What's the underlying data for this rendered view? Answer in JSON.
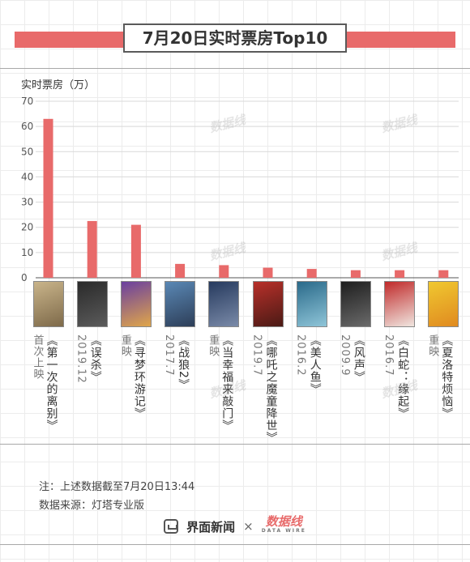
{
  "header": {
    "title": "7月20日实时票房Top10"
  },
  "watermark": "数据线",
  "chart_data": {
    "type": "bar",
    "title": "7月20日实时票房Top10",
    "ylabel": "实时票房（万）",
    "ylim": [
      0,
      70
    ],
    "yticks": [
      0,
      10,
      20,
      30,
      40,
      50,
      60,
      70
    ],
    "grid": true,
    "bar_color": "#e86a6a",
    "categories": [
      "《第一次的离别》",
      "《误杀》",
      "《寻梦环游记》",
      "《战狼2》",
      "《当幸福来敲门》",
      "《哪吒之魔童降世》",
      "《美人鱼》",
      "《风声》",
      "《白蛇：缘起》",
      "《夏洛特烦恼》"
    ],
    "values": [
      63,
      22.5,
      21,
      5.5,
      5,
      4,
      3.5,
      3,
      3,
      3
    ],
    "release_notes": [
      "首次上映",
      "2019.12",
      "重映",
      "2017.7",
      "重映",
      "2019.7",
      "2016.2",
      "2009.9",
      "2016.7",
      "重映"
    ]
  },
  "posters": [
    {
      "colors": [
        "#c9b48a",
        "#7e6a4a"
      ]
    },
    {
      "colors": [
        "#2a2a2a",
        "#5b5b5b"
      ]
    },
    {
      "colors": [
        "#6a3fa0",
        "#e0a64a"
      ]
    },
    {
      "colors": [
        "#5a88b5",
        "#2d3e58"
      ]
    },
    {
      "colors": [
        "#263a5e",
        "#7a8aa8"
      ]
    },
    {
      "colors": [
        "#b8302a",
        "#4a1a15"
      ]
    },
    {
      "colors": [
        "#2a6a8a",
        "#8fc5d8"
      ]
    },
    {
      "colors": [
        "#1e1e1e",
        "#6a6a6a"
      ]
    },
    {
      "colors": [
        "#c02a2a",
        "#f0e6e0"
      ]
    },
    {
      "colors": [
        "#f0c830",
        "#e08a20"
      ]
    }
  ],
  "footer": {
    "note": "注：上述数据截至7月20日13:44",
    "source": "数据来源：灯塔专业版",
    "brand1": "界面新闻",
    "brand_sep": "×",
    "brand2": "数据线",
    "brand2_sub": "DATA WIRE"
  }
}
